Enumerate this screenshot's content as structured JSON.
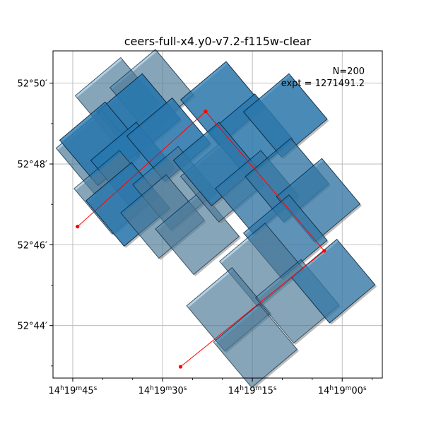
{
  "chart_data": {
    "type": "scatter",
    "title": "ceers-full-x4.y0-v7.2-f115w-clear",
    "annotation": {
      "line1": "N=200",
      "line2": "expt = 1271491.2"
    },
    "x_ticks": [
      {
        "hms": [
          14,
          19,
          45
        ]
      },
      {
        "hms": [
          14,
          19,
          30
        ]
      },
      {
        "hms": [
          14,
          19,
          15
        ]
      },
      {
        "hms": [
          14,
          19,
          0
        ]
      }
    ],
    "y_ticks": [
      {
        "deg": 52,
        "arcmin": 50
      },
      {
        "deg": 52,
        "arcmin": 48
      },
      {
        "deg": 52,
        "arcmin": 46
      },
      {
        "deg": 52,
        "arcmin": 44
      }
    ],
    "xlim_ra_sec": [
      48.3,
      -6.7
    ],
    "ylim_dec_arcmin": [
      42.7,
      50.8
    ],
    "grid": true,
    "footprint_color": "#1f77b4",
    "path_color": "#ff0000",
    "path_points": [
      {
        "ra_sec": 44.2,
        "dec_arcmin": 46.45
      },
      {
        "ra_sec": 22.8,
        "dec_arcmin": 49.3
      },
      {
        "ra_sec": 3.0,
        "dec_arcmin": 45.85
      },
      {
        "ra_sec": 27.0,
        "dec_arcmin": 42.98
      }
    ],
    "footprints": [
      {
        "ra_sec": 37.6,
        "dec_arcmin": 49.6,
        "level": 0.4
      },
      {
        "ra_sec": 31.8,
        "dec_arcmin": 49.8,
        "level": 0.4
      },
      {
        "ra_sec": 34.0,
        "dec_arcmin": 49.2,
        "level": 0.95
      },
      {
        "ra_sec": 40.8,
        "dec_arcmin": 48.3,
        "level": 0.45
      },
      {
        "ra_sec": 40.2,
        "dec_arcmin": 48.5,
        "level": 0.9
      },
      {
        "ra_sec": 35.0,
        "dec_arcmin": 48.0,
        "level": 0.95
      },
      {
        "ra_sec": 29.0,
        "dec_arcmin": 48.6,
        "level": 0.9
      },
      {
        "ra_sec": 37.8,
        "dec_arcmin": 47.3,
        "level": 0.4
      },
      {
        "ra_sec": 35.8,
        "dec_arcmin": 47.0,
        "level": 0.9
      },
      {
        "ra_sec": 28.0,
        "dec_arcmin": 47.4,
        "level": 0.4
      },
      {
        "ra_sec": 30.0,
        "dec_arcmin": 46.7,
        "level": 0.4
      },
      {
        "ra_sec": 24.2,
        "dec_arcmin": 46.3,
        "level": 0.4
      },
      {
        "ra_sec": 20.0,
        "dec_arcmin": 47.6,
        "level": 0.4
      },
      {
        "ra_sec": 20.0,
        "dec_arcmin": 49.5,
        "level": 0.85
      },
      {
        "ra_sec": 15.2,
        "dec_arcmin": 48.7,
        "level": 0.85
      },
      {
        "ra_sec": 9.5,
        "dec_arcmin": 49.2,
        "level": 0.85
      },
      {
        "ra_sec": 21.2,
        "dec_arcmin": 48.0,
        "level": 0.85
      },
      {
        "ra_sec": 14.2,
        "dec_arcmin": 47.3,
        "level": 0.7
      },
      {
        "ra_sec": 9.2,
        "dec_arcmin": 47.6,
        "level": 0.7
      },
      {
        "ra_sec": 4.0,
        "dec_arcmin": 47.1,
        "level": 0.7
      },
      {
        "ra_sec": 9.5,
        "dec_arcmin": 46.2,
        "level": 0.7
      },
      {
        "ra_sec": 13.5,
        "dec_arcmin": 45.5,
        "level": 0.4
      },
      {
        "ra_sec": 19.0,
        "dec_arcmin": 44.4,
        "level": 0.4
      },
      {
        "ra_sec": 7.5,
        "dec_arcmin": 44.6,
        "level": 0.4
      },
      {
        "ra_sec": 14.5,
        "dec_arcmin": 43.5,
        "level": 0.4
      },
      {
        "ra_sec": 1.5,
        "dec_arcmin": 45.1,
        "level": 0.7
      }
    ]
  }
}
